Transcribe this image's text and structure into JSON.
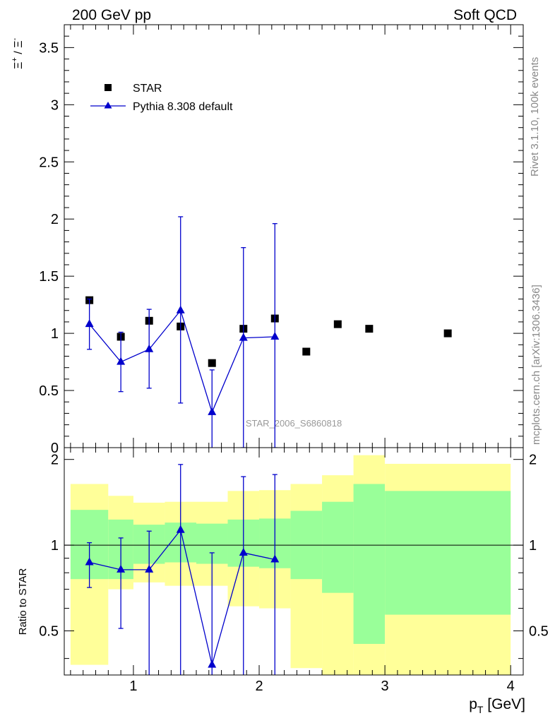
{
  "header": {
    "left": "200 GeV pp",
    "right": "Soft QCD"
  },
  "side": {
    "rivet": "Rivet 3.1.10,  100k events",
    "mcplots": "mcplots.cern.ch [arXiv:1306.3436]"
  },
  "colors": {
    "data": "#000000",
    "mc": "#0000cc",
    "band_inner": "#99ff99",
    "band_outer": "#ffff99",
    "watermark": "#999999"
  },
  "chart_data": [
    {
      "type": "scatter",
      "panel": "main",
      "ylabel_parts": [
        "Ξ",
        "+",
        " / ",
        "Ξ",
        "-"
      ],
      "watermark": "STAR_2006_S6860818",
      "xlim": [
        0.45,
        4.1
      ],
      "ylim": [
        0,
        3.7
      ],
      "yticks": [
        0,
        0.5,
        1,
        1.5,
        2,
        2.5,
        3,
        3.5
      ],
      "ytick_labels": [
        "0",
        "0.5",
        "1",
        "1.5",
        "2",
        "2.5",
        "3",
        "3.5"
      ],
      "legend_position": "top-left",
      "series": [
        {
          "name": "STAR",
          "marker": "square",
          "x": [
            0.65,
            0.9,
            1.125,
            1.375,
            1.625,
            1.875,
            2.125,
            2.375,
            2.625,
            2.875,
            3.5
          ],
          "y": [
            1.29,
            0.97,
            1.11,
            1.06,
            0.74,
            1.04,
            1.13,
            0.84,
            1.08,
            1.04,
            1.0
          ]
        },
        {
          "name": "Pythia 8.308 default",
          "marker": "triangle",
          "x": [
            0.65,
            0.9,
            1.125,
            1.375,
            1.625,
            1.875,
            2.125
          ],
          "y": [
            1.08,
            0.75,
            0.86,
            1.2,
            0.31,
            0.96,
            0.97
          ],
          "yerr_low": [
            0.22,
            0.26,
            0.34,
            0.81,
            0.37,
            0.96,
            0.97
          ],
          "yerr_high": [
            0.22,
            0.26,
            0.35,
            0.82,
            0.37,
            0.79,
            0.99
          ]
        }
      ]
    },
    {
      "type": "line",
      "panel": "ratio",
      "ylabel": "Ratio to STAR",
      "xlabel": "p",
      "xlabel_sub": "T",
      "xlabel_unit": " [GeV]",
      "xlim": [
        0.45,
        4.1
      ],
      "ylim": [
        0.35,
        2.2
      ],
      "xticks": [
        1,
        2,
        3,
        4
      ],
      "xtick_labels": [
        "1",
        "2",
        "3",
        "4"
      ],
      "yticks": [
        0.5,
        1,
        2
      ],
      "ytick_labels": [
        "0.5",
        "1",
        "2"
      ],
      "reference_line": 1,
      "bands": {
        "edges": [
          0.5,
          0.8,
          1.0,
          1.25,
          1.5,
          1.75,
          2.0,
          2.25,
          2.5,
          2.75,
          3.0,
          4.0
        ],
        "inner_low": [
          0.76,
          0.76,
          0.86,
          0.87,
          0.86,
          0.84,
          0.83,
          0.76,
          0.68,
          0.45,
          0.57
        ],
        "inner_high": [
          1.33,
          1.23,
          1.18,
          1.2,
          1.19,
          1.23,
          1.24,
          1.32,
          1.42,
          1.64,
          1.55
        ],
        "outer_low": [
          0.38,
          0.7,
          0.74,
          0.72,
          0.72,
          0.61,
          0.6,
          0.37,
          0.35,
          0.35,
          0.35
        ],
        "outer_high": [
          1.64,
          1.49,
          1.41,
          1.42,
          1.42,
          1.55,
          1.56,
          1.64,
          1.76,
          2.07,
          1.93
        ]
      },
      "series": [
        {
          "name": "Pythia 8.308 default",
          "x": [
            0.65,
            0.9,
            1.125,
            1.375,
            1.625,
            1.875,
            2.125
          ],
          "y": [
            0.87,
            0.82,
            0.82,
            1.13,
            0.38,
            0.94,
            0.89
          ],
          "yerr_low": [
            0.16,
            0.31,
            0.48,
            0.8,
            0.05,
            0.6,
            0.55
          ],
          "yerr_high": [
            0.15,
            0.24,
            0.3,
            0.79,
            0.56,
            0.8,
            0.88
          ]
        }
      ]
    }
  ]
}
